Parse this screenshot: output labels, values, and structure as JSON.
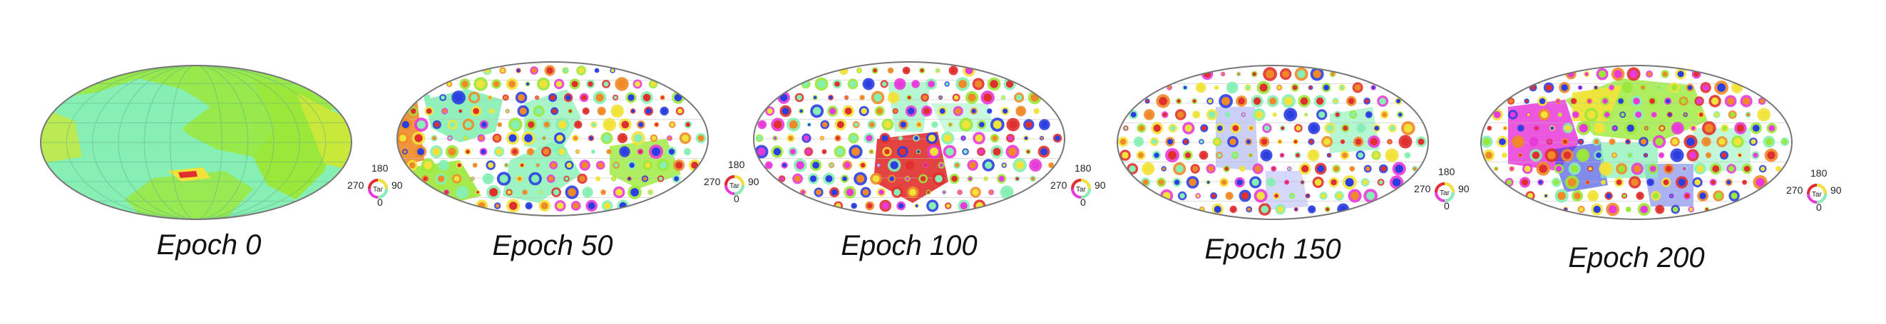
{
  "figure": {
    "panels": [
      {
        "caption": "Epoch 0",
        "legend": {
          "top": "180",
          "left": "270",
          "center": "Tar",
          "right": "90",
          "bottom": "0"
        }
      },
      {
        "caption": "Epoch 50",
        "legend": {
          "top": "180",
          "left": "270",
          "center": "Tar",
          "right": "90",
          "bottom": "0"
        }
      },
      {
        "caption": "Epoch 100",
        "legend": {
          "top": "180",
          "left": "270",
          "center": "Tar",
          "right": "90",
          "bottom": "0"
        }
      },
      {
        "caption": "Epoch 150",
        "legend": {
          "top": "180",
          "left": "270",
          "center": "Tar",
          "right": "90",
          "bottom": "0"
        }
      },
      {
        "caption": "Epoch 200",
        "legend": {
          "top": "180",
          "left": "270",
          "center": "Tar",
          "right": "90",
          "bottom": "0"
        }
      }
    ]
  },
  "colors": {
    "mint": "#86f0b4",
    "lime": "#9be83a",
    "yellow": "#f2e33a",
    "orange": "#f08a28",
    "red": "#e0302e",
    "magenta": "#e83ad8",
    "blue": "#2b3ee0",
    "outline": "#777777"
  }
}
